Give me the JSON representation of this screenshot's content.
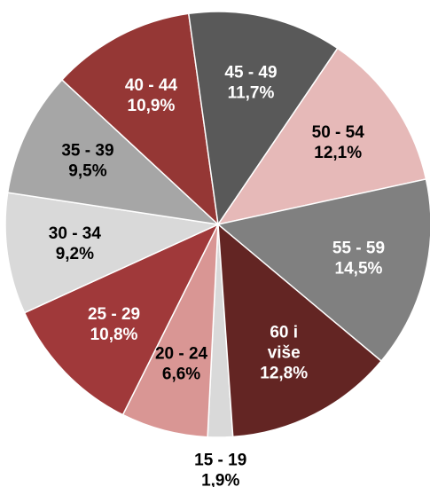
{
  "chart_data": {
    "type": "pie",
    "categories": [
      "15 - 19",
      "20 - 24",
      "25 - 29",
      "30 - 34",
      "35 - 39",
      "40 - 44",
      "45 - 49",
      "50 - 54",
      "55 - 59",
      "60 i više"
    ],
    "values": [
      1.9,
      6.6,
      10.8,
      9.2,
      9.5,
      10.9,
      11.7,
      12.1,
      14.5,
      12.8
    ],
    "value_labels": [
      "1,9%",
      "6,6%",
      "10,8%",
      "9,2%",
      "9,5%",
      "10,9%",
      "11,7%",
      "12,1%",
      "14,5%",
      "12,8%"
    ],
    "colors": [
      "#d9d9d9",
      "#d99694",
      "#a0393a",
      "#d9d9d9",
      "#a6a6a6",
      "#953735",
      "#595959",
      "#e6b9b8",
      "#808080",
      "#632523"
    ],
    "label_colors": [
      "#000000",
      "#000000",
      "#ffffff",
      "#000000",
      "#000000",
      "#ffffff",
      "#ffffff",
      "#000000",
      "#ffffff",
      "#ffffff"
    ]
  }
}
